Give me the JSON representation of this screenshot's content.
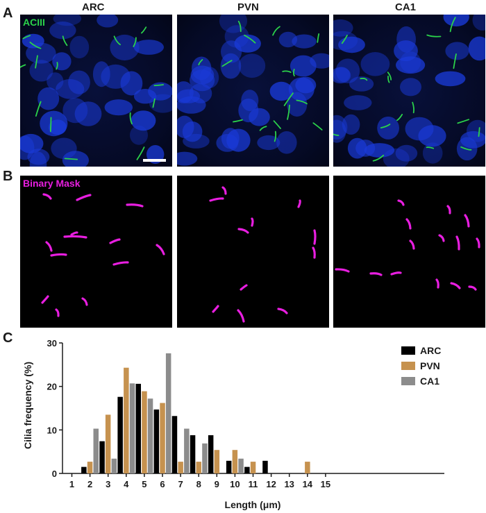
{
  "panel_letters": {
    "a": "A",
    "b": "B",
    "c": "C"
  },
  "columns": [
    "ARC",
    "PVN",
    "CA1"
  ],
  "labels": {
    "stain": "ACIII",
    "mask": "Binary Mask"
  },
  "colors": {
    "nucleus": "#1a3ad8",
    "cilia": "#2bd24a",
    "mask": "#e81ee0",
    "ARC": "#000000",
    "PVN": "#c6924f",
    "CA1": "#8c8c8c"
  },
  "chart_data": {
    "type": "bar",
    "xlabel": "Length (μm)",
    "ylabel": "Cilia frequency (%)",
    "ylim": [
      0,
      30
    ],
    "yticks": [
      0,
      10,
      20,
      30
    ],
    "categories": [
      "1",
      "2",
      "3",
      "4",
      "5",
      "6",
      "7",
      "8",
      "9",
      "10",
      "11",
      "12",
      "13",
      "14",
      "15"
    ],
    "series": [
      {
        "name": "ARC",
        "values": [
          0,
          1.5,
          7.4,
          17.6,
          20.6,
          14.7,
          13.2,
          8.8,
          8.8,
          2.9,
          1.5,
          2.9,
          0,
          0,
          0
        ]
      },
      {
        "name": "PVN",
        "values": [
          0,
          2.7,
          13.5,
          24.3,
          18.9,
          16.2,
          2.7,
          2.7,
          5.4,
          5.4,
          2.7,
          0,
          0,
          2.7,
          0
        ]
      },
      {
        "name": "CA1",
        "values": [
          0,
          10.3,
          3.4,
          20.7,
          17.2,
          27.6,
          10.3,
          6.9,
          0,
          3.4,
          0,
          0,
          0,
          0,
          0
        ]
      }
    ],
    "legend_position": "top-right"
  }
}
